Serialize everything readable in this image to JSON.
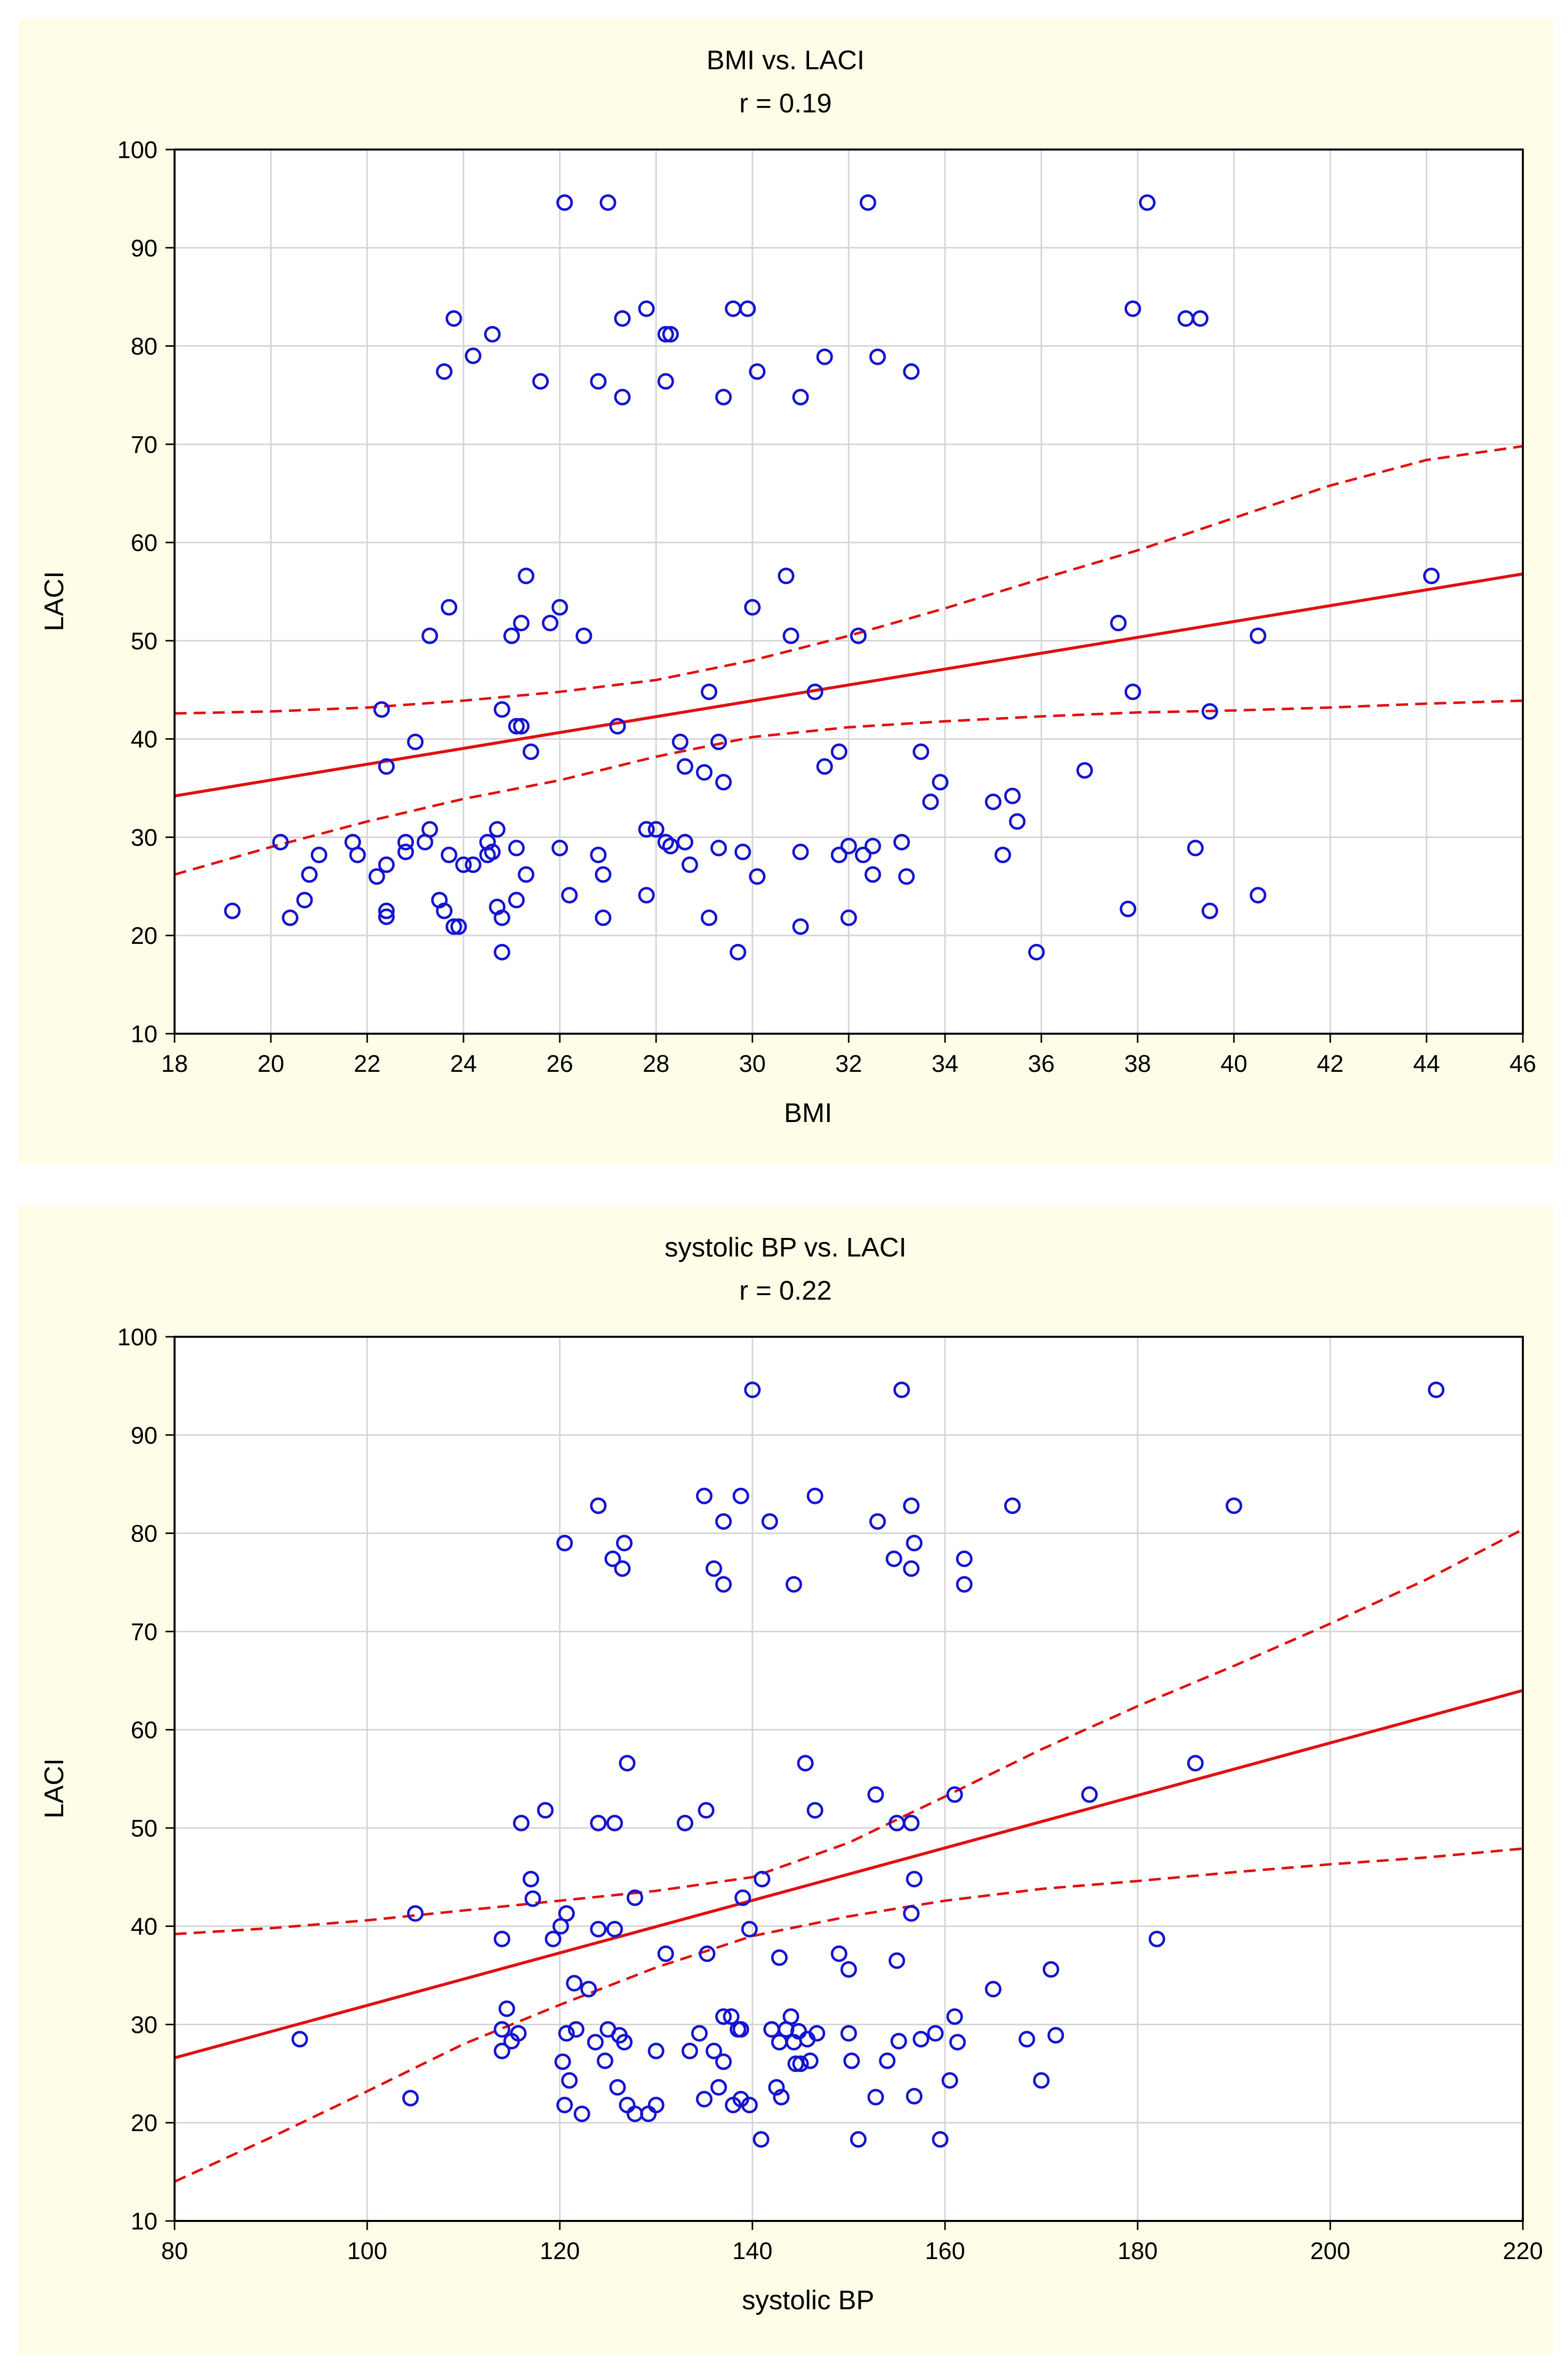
{
  "chart_data": [
    {
      "type": "scatter",
      "title": "BMI vs. LACI",
      "subtitle": "r = 0.19",
      "xlabel": "BMI",
      "ylabel": "LACI",
      "xlim": [
        18,
        46
      ],
      "ylim": [
        10,
        100
      ],
      "xticks": [
        18,
        20,
        22,
        24,
        26,
        28,
        30,
        32,
        34,
        36,
        38,
        40,
        42,
        44,
        46
      ],
      "yticks": [
        10,
        20,
        30,
        40,
        50,
        60,
        70,
        80,
        90,
        100
      ],
      "grid": true,
      "point_color": "#1414D2",
      "line_color": "#E01010",
      "regression": {
        "x": [
          18,
          46
        ],
        "y": [
          34.2,
          56.8
        ]
      },
      "ci_upper": {
        "x": [
          18,
          20,
          22,
          24,
          26,
          28,
          30,
          32,
          34,
          36,
          38,
          40,
          42,
          44,
          46
        ],
        "y": [
          42.6,
          42.8,
          43.2,
          43.9,
          44.8,
          46.0,
          48.0,
          50.5,
          53.3,
          56.3,
          59.2,
          62.5,
          65.8,
          68.4,
          69.8
        ]
      },
      "ci_lower": {
        "x": [
          18,
          20,
          22,
          24,
          26,
          28,
          30,
          32,
          34,
          36,
          38,
          40,
          42,
          44,
          46
        ],
        "y": [
          26.2,
          29.0,
          31.6,
          33.9,
          35.8,
          38.2,
          40.2,
          41.2,
          41.8,
          42.3,
          42.7,
          42.9,
          43.2,
          43.6,
          43.9
        ]
      },
      "points": [
        [
          19.2,
          22.5
        ],
        [
          20.2,
          29.5
        ],
        [
          20.4,
          21.8
        ],
        [
          20.7,
          23.6
        ],
        [
          20.8,
          26.2
        ],
        [
          21.0,
          28.2
        ],
        [
          21.7,
          29.5
        ],
        [
          21.8,
          28.2
        ],
        [
          22.2,
          26.0
        ],
        [
          22.3,
          43.0
        ],
        [
          22.4,
          37.2
        ],
        [
          22.4,
          27.2
        ],
        [
          22.4,
          22.5
        ],
        [
          22.4,
          21.9
        ],
        [
          22.8,
          29.5
        ],
        [
          22.8,
          28.5
        ],
        [
          23.0,
          39.7
        ],
        [
          23.2,
          29.5
        ],
        [
          23.3,
          30.8
        ],
        [
          23.3,
          50.5
        ],
        [
          23.5,
          23.6
        ],
        [
          23.6,
          77.4
        ],
        [
          23.6,
          22.5
        ],
        [
          23.7,
          28.2
        ],
        [
          23.7,
          53.4
        ],
        [
          23.8,
          20.9
        ],
        [
          23.8,
          82.8
        ],
        [
          23.9,
          20.9
        ],
        [
          24.0,
          27.2
        ],
        [
          24.2,
          27.2
        ],
        [
          24.2,
          79.0
        ],
        [
          24.5,
          29.5
        ],
        [
          24.5,
          28.2
        ],
        [
          24.6,
          81.2
        ],
        [
          24.6,
          28.5
        ],
        [
          24.7,
          22.9
        ],
        [
          24.7,
          30.8
        ],
        [
          24.8,
          21.8
        ],
        [
          24.8,
          43.0
        ],
        [
          24.8,
          18.3
        ],
        [
          25.0,
          50.5
        ],
        [
          25.1,
          23.6
        ],
        [
          25.1,
          41.3
        ],
        [
          25.1,
          28.9
        ],
        [
          25.2,
          41.3
        ],
        [
          25.2,
          51.8
        ],
        [
          25.3,
          56.6
        ],
        [
          25.3,
          26.2
        ],
        [
          25.4,
          38.7
        ],
        [
          25.6,
          76.4
        ],
        [
          25.8,
          51.8
        ],
        [
          26.0,
          53.4
        ],
        [
          26.0,
          28.9
        ],
        [
          26.1,
          94.6
        ],
        [
          26.2,
          24.1
        ],
        [
          26.5,
          50.5
        ],
        [
          26.8,
          76.4
        ],
        [
          26.8,
          28.2
        ],
        [
          26.9,
          26.2
        ],
        [
          26.9,
          21.8
        ],
        [
          27.0,
          94.6
        ],
        [
          27.2,
          41.3
        ],
        [
          27.3,
          82.8
        ],
        [
          27.3,
          74.8
        ],
        [
          27.8,
          83.8
        ],
        [
          27.8,
          30.8
        ],
        [
          27.8,
          24.1
        ],
        [
          28.0,
          30.8
        ],
        [
          28.2,
          81.2
        ],
        [
          28.2,
          76.4
        ],
        [
          28.3,
          81.2
        ],
        [
          28.2,
          29.5
        ],
        [
          28.3,
          29.1
        ],
        [
          28.5,
          39.7
        ],
        [
          28.6,
          37.2
        ],
        [
          28.6,
          29.5
        ],
        [
          28.7,
          27.2
        ],
        [
          29.0,
          36.6
        ],
        [
          29.1,
          21.8
        ],
        [
          29.1,
          44.8
        ],
        [
          29.3,
          39.7
        ],
        [
          29.3,
          28.9
        ],
        [
          29.4,
          35.6
        ],
        [
          29.4,
          74.8
        ],
        [
          29.6,
          83.8
        ],
        [
          29.7,
          18.3
        ],
        [
          29.8,
          28.5
        ],
        [
          29.9,
          83.8
        ],
        [
          30.0,
          53.4
        ],
        [
          30.1,
          77.4
        ],
        [
          30.1,
          26.0
        ],
        [
          30.7,
          56.6
        ],
        [
          30.8,
          50.5
        ],
        [
          31.0,
          74.8
        ],
        [
          31.0,
          28.5
        ],
        [
          31.0,
          20.9
        ],
        [
          31.3,
          44.8
        ],
        [
          31.5,
          78.9
        ],
        [
          31.5,
          37.2
        ],
        [
          31.8,
          28.2
        ],
        [
          31.8,
          38.7
        ],
        [
          32.0,
          29.1
        ],
        [
          32.0,
          21.8
        ],
        [
          32.2,
          50.5
        ],
        [
          32.3,
          28.2
        ],
        [
          32.4,
          94.6
        ],
        [
          32.5,
          29.1
        ],
        [
          32.5,
          26.2
        ],
        [
          32.6,
          78.9
        ],
        [
          33.1,
          29.5
        ],
        [
          33.2,
          26.0
        ],
        [
          33.3,
          77.4
        ],
        [
          33.5,
          38.7
        ],
        [
          33.7,
          33.6
        ],
        [
          33.9,
          35.6
        ],
        [
          35.0,
          33.6
        ],
        [
          35.2,
          28.2
        ],
        [
          35.4,
          34.2
        ],
        [
          35.5,
          31.6
        ],
        [
          35.9,
          18.3
        ],
        [
          36.9,
          36.8
        ],
        [
          37.6,
          51.8
        ],
        [
          37.8,
          22.7
        ],
        [
          37.9,
          83.8
        ],
        [
          37.9,
          44.8
        ],
        [
          38.2,
          94.6
        ],
        [
          39.0,
          82.8
        ],
        [
          39.2,
          28.9
        ],
        [
          39.3,
          82.8
        ],
        [
          39.5,
          42.8
        ],
        [
          39.5,
          22.5
        ],
        [
          40.5,
          50.5
        ],
        [
          40.5,
          24.1
        ],
        [
          44.1,
          56.6
        ]
      ]
    },
    {
      "type": "scatter",
      "title": "systolic BP vs. LACI",
      "subtitle": "r = 0.22",
      "xlabel": "systolic BP",
      "ylabel": "LACI",
      "xlim": [
        80,
        220
      ],
      "ylim": [
        10,
        100
      ],
      "xticks": [
        80,
        100,
        120,
        140,
        160,
        180,
        200,
        220
      ],
      "yticks": [
        10,
        20,
        30,
        40,
        50,
        60,
        70,
        80,
        90,
        100
      ],
      "grid": true,
      "point_color": "#1414D2",
      "line_color": "#E01010",
      "regression": {
        "x": [
          80,
          220
        ],
        "y": [
          26.6,
          64.0
        ]
      },
      "ci_upper": {
        "x": [
          80,
          90,
          100,
          110,
          120,
          130,
          140,
          150,
          160,
          170,
          180,
          190,
          200,
          210,
          220
        ],
        "y": [
          39.2,
          39.8,
          40.6,
          41.6,
          42.6,
          43.6,
          45.0,
          48.5,
          53.2,
          58.0,
          62.4,
          66.5,
          70.8,
          75.3,
          80.4
        ]
      },
      "ci_lower": {
        "x": [
          80,
          90,
          100,
          110,
          120,
          130,
          140,
          150,
          160,
          170,
          180,
          190,
          200,
          210,
          220
        ],
        "y": [
          14.0,
          18.5,
          23.2,
          28.0,
          32.0,
          35.8,
          39.0,
          41.0,
          42.6,
          43.8,
          44.6,
          45.5,
          46.3,
          47.0,
          47.9
        ]
      },
      "points": [
        [
          93,
          28.5
        ],
        [
          104.5,
          22.5
        ],
        [
          105,
          41.3
        ],
        [
          114,
          29.5
        ],
        [
          114,
          38.7
        ],
        [
          114,
          27.3
        ],
        [
          114.5,
          31.6
        ],
        [
          115,
          28.3
        ],
        [
          115.7,
          29.1
        ],
        [
          116,
          50.5
        ],
        [
          117,
          44.8
        ],
        [
          117.2,
          42.8
        ],
        [
          118.5,
          51.8
        ],
        [
          119.3,
          38.7
        ],
        [
          120.1,
          40.0
        ],
        [
          120.3,
          26.2
        ],
        [
          120.5,
          21.8
        ],
        [
          120.5,
          79.0
        ],
        [
          120.7,
          29.1
        ],
        [
          120.7,
          41.3
        ],
        [
          121,
          24.3
        ],
        [
          121.5,
          34.2
        ],
        [
          121.7,
          29.5
        ],
        [
          122.3,
          20.9
        ],
        [
          123,
          33.6
        ],
        [
          123.7,
          28.2
        ],
        [
          124,
          82.8
        ],
        [
          124,
          50.5
        ],
        [
          124,
          39.7
        ],
        [
          124.7,
          26.3
        ],
        [
          125,
          29.5
        ],
        [
          125.5,
          77.4
        ],
        [
          125.7,
          39.7
        ],
        [
          125.7,
          50.5
        ],
        [
          126,
          23.6
        ],
        [
          126.2,
          28.9
        ],
        [
          126.5,
          76.4
        ],
        [
          126.7,
          28.2
        ],
        [
          126.7,
          79.0
        ],
        [
          127,
          21.8
        ],
        [
          127,
          56.6
        ],
        [
          127.8,
          42.9
        ],
        [
          127.8,
          20.9
        ],
        [
          129.2,
          20.9
        ],
        [
          130,
          21.8
        ],
        [
          130,
          27.3
        ],
        [
          131,
          37.2
        ],
        [
          133,
          50.5
        ],
        [
          133.5,
          27.3
        ],
        [
          134.5,
          29.1
        ],
        [
          135,
          22.4
        ],
        [
          135,
          83.8
        ],
        [
          135.2,
          51.8
        ],
        [
          135.3,
          37.2
        ],
        [
          136,
          76.4
        ],
        [
          136,
          27.3
        ],
        [
          136.5,
          23.6
        ],
        [
          137,
          30.8
        ],
        [
          137,
          81.2
        ],
        [
          137,
          74.8
        ],
        [
          137,
          26.2
        ],
        [
          137.8,
          30.8
        ],
        [
          138,
          21.8
        ],
        [
          138.5,
          29.5
        ],
        [
          138.8,
          22.4
        ],
        [
          138.8,
          83.8
        ],
        [
          138.8,
          29.5
        ],
        [
          139,
          42.9
        ],
        [
          139.7,
          21.8
        ],
        [
          139.7,
          39.7
        ],
        [
          140,
          94.6
        ],
        [
          140.9,
          18.3
        ],
        [
          141,
          44.8
        ],
        [
          141.8,
          81.2
        ],
        [
          142,
          29.5
        ],
        [
          142.5,
          23.6
        ],
        [
          142.8,
          28.2
        ],
        [
          142.8,
          36.8
        ],
        [
          143,
          22.6
        ],
        [
          143.5,
          29.5
        ],
        [
          144,
          30.8
        ],
        [
          144.3,
          74.8
        ],
        [
          144.3,
          28.2
        ],
        [
          144.5,
          26.0
        ],
        [
          144.8,
          29.3
        ],
        [
          145,
          26.0
        ],
        [
          145.5,
          56.6
        ],
        [
          145.7,
          28.5
        ],
        [
          146,
          26.3
        ],
        [
          146.5,
          51.8
        ],
        [
          146.5,
          83.8
        ],
        [
          146.7,
          29.1
        ],
        [
          149,
          37.2
        ],
        [
          150,
          35.6
        ],
        [
          150,
          29.1
        ],
        [
          150.3,
          26.3
        ],
        [
          151,
          18.3
        ],
        [
          152.8,
          22.6
        ],
        [
          152.8,
          53.4
        ],
        [
          153,
          81.2
        ],
        [
          154,
          26.3
        ],
        [
          154.7,
          77.4
        ],
        [
          155,
          50.5
        ],
        [
          155,
          36.5
        ],
        [
          155.2,
          28.3
        ],
        [
          155.5,
          94.6
        ],
        [
          156.5,
          82.8
        ],
        [
          156.5,
          76.4
        ],
        [
          156.5,
          50.5
        ],
        [
          156.5,
          41.3
        ],
        [
          156.8,
          79.0
        ],
        [
          156.8,
          44.8
        ],
        [
          156.8,
          22.7
        ],
        [
          157.5,
          28.5
        ],
        [
          159,
          29.1
        ],
        [
          159.5,
          18.3
        ],
        [
          160.5,
          24.3
        ],
        [
          161,
          30.8
        ],
        [
          161,
          53.4
        ],
        [
          161.3,
          28.2
        ],
        [
          162,
          77.4
        ],
        [
          162,
          74.8
        ],
        [
          165,
          33.6
        ],
        [
          167,
          82.8
        ],
        [
          168.5,
          28.5
        ],
        [
          170,
          24.3
        ],
        [
          171,
          35.6
        ],
        [
          171.5,
          28.9
        ],
        [
          175,
          53.4
        ],
        [
          182,
          38.7
        ],
        [
          186,
          56.6
        ],
        [
          190,
          82.8
        ],
        [
          211,
          94.6
        ]
      ]
    }
  ]
}
